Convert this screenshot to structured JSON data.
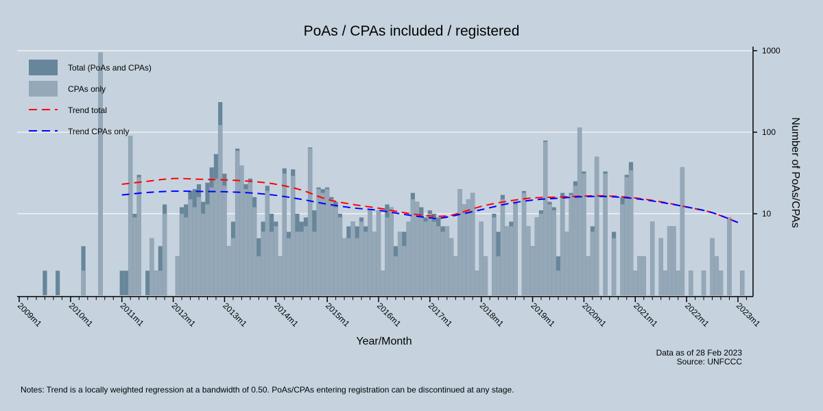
{
  "chart_data": {
    "type": "bar",
    "title": "PoAs / CPAs included / registered",
    "xlabel": "Year/Month",
    "ylabel": "Number of PoAs/CPAs",
    "y_scale": "log",
    "ylim": [
      1,
      1000
    ],
    "y_ticks": [
      10,
      100,
      1000
    ],
    "y_axis_side": "right",
    "x_range": [
      "2009m1",
      "2023m1"
    ],
    "x_ticks": [
      "2009m1",
      "2010m1",
      "2011m1",
      "2012m1",
      "2013m1",
      "2014m1",
      "2015m1",
      "2016m1",
      "2017m1",
      "2018m1",
      "2019m1",
      "2020m1",
      "2021m1",
      "2022m1",
      "2023m1"
    ],
    "grid": true,
    "legend": {
      "placement": "top-left",
      "items": [
        "Total (PoAs and CPAs)",
        "CPAs only",
        "Trend total",
        "Trend CPAs only"
      ]
    },
    "colors": {
      "total": "#67869a",
      "cpas": "#95a8b8",
      "trend_total": "#ff0000",
      "trend_cpas": "#0000ff",
      "background": "#c6d3df"
    },
    "series_names": [
      "Total (PoAs and CPAs)",
      "CPAs only"
    ],
    "bars": [
      [
        "2009m7",
        2,
        0
      ],
      [
        "2009m10",
        2,
        0
      ],
      [
        "2010m4",
        4,
        2
      ],
      [
        "2010m8",
        950,
        950
      ],
      [
        "2011m1",
        2,
        0
      ],
      [
        "2011m2",
        2,
        0
      ],
      [
        "2011m3",
        90,
        90
      ],
      [
        "2011m4",
        10,
        9
      ],
      [
        "2011m5",
        30,
        28
      ],
      [
        "2011m7",
        2,
        0
      ],
      [
        "2011m8",
        5,
        5
      ],
      [
        "2011m9",
        2,
        2
      ],
      [
        "2011m10",
        4,
        2
      ],
      [
        "2011m11",
        13,
        10
      ],
      [
        "2012m2",
        3,
        3
      ],
      [
        "2012m3",
        12,
        10
      ],
      [
        "2012m4",
        13,
        9
      ],
      [
        "2012m5",
        19,
        15
      ],
      [
        "2012m6",
        20,
        12
      ],
      [
        "2012m7",
        23,
        16
      ],
      [
        "2012m8",
        14,
        10
      ],
      [
        "2012m9",
        24,
        13
      ],
      [
        "2012m10",
        37,
        21
      ],
      [
        "2012m11",
        54,
        27
      ],
      [
        "2012m12",
        234,
        122
      ],
      [
        "2013m1",
        31,
        22
      ],
      [
        "2013m2",
        4,
        4
      ],
      [
        "2013m3",
        8,
        5
      ],
      [
        "2013m4",
        63,
        59
      ],
      [
        "2013m5",
        39,
        39
      ],
      [
        "2013m6",
        23,
        20
      ],
      [
        "2013m7",
        27,
        25
      ],
      [
        "2013m8",
        16,
        12
      ],
      [
        "2013m9",
        5,
        3
      ],
      [
        "2013m10",
        8,
        6
      ],
      [
        "2013m11",
        22,
        19
      ],
      [
        "2013m12",
        10,
        6
      ],
      [
        "2014m1",
        8,
        7
      ],
      [
        "2014m2",
        3,
        3
      ],
      [
        "2014m3",
        36,
        31
      ],
      [
        "2014m4",
        6,
        5
      ],
      [
        "2014m5",
        35,
        29
      ],
      [
        "2014m6",
        10,
        6
      ],
      [
        "2014m7",
        8,
        6
      ],
      [
        "2014m8",
        9,
        7
      ],
      [
        "2014m9",
        65,
        63
      ],
      [
        "2014m10",
        11,
        6
      ],
      [
        "2014m11",
        21,
        20
      ],
      [
        "2014m12",
        20,
        18
      ],
      [
        "2015m1",
        21,
        20
      ],
      [
        "2015m2",
        16,
        15
      ],
      [
        "2015m3",
        14,
        12
      ],
      [
        "2015m4",
        10,
        9
      ],
      [
        "2015m5",
        5,
        5
      ],
      [
        "2015m6",
        7,
        5
      ],
      [
        "2015m7",
        8,
        8
      ],
      [
        "2015m8",
        7,
        5
      ],
      [
        "2015m9",
        9,
        8
      ],
      [
        "2015m10",
        7,
        6
      ],
      [
        "2015m11",
        11,
        11
      ],
      [
        "2015m12",
        6,
        6
      ],
      [
        "2016m1",
        11,
        11
      ],
      [
        "2016m2",
        2,
        2
      ],
      [
        "2016m3",
        13,
        9
      ],
      [
        "2016m4",
        12,
        12
      ],
      [
        "2016m5",
        4,
        3
      ],
      [
        "2016m6",
        6,
        6
      ],
      [
        "2016m7",
        6,
        4
      ],
      [
        "2016m8",
        8,
        8
      ],
      [
        "2016m9",
        18,
        15
      ],
      [
        "2016m10",
        14,
        14
      ],
      [
        "2016m11",
        12,
        9
      ],
      [
        "2016m12",
        9,
        8
      ],
      [
        "2017m1",
        11,
        10
      ],
      [
        "2017m2",
        10,
        8
      ],
      [
        "2017m3",
        9,
        7
      ],
      [
        "2017m4",
        7,
        6
      ],
      [
        "2017m5",
        7,
        7
      ],
      [
        "2017m6",
        5,
        5
      ],
      [
        "2017m7",
        3,
        3
      ],
      [
        "2017m8",
        20,
        20
      ],
      [
        "2017m9",
        13,
        13
      ],
      [
        "2017m10",
        15,
        15
      ],
      [
        "2017m11",
        18,
        18
      ],
      [
        "2017m12",
        2,
        2
      ],
      [
        "2018m1",
        8,
        8
      ],
      [
        "2018m2",
        3,
        3
      ],
      [
        "2018m4",
        10,
        9
      ],
      [
        "2018m5",
        6,
        3
      ],
      [
        "2018m6",
        17,
        15
      ],
      [
        "2018m7",
        7,
        7
      ],
      [
        "2018m8",
        8,
        7
      ],
      [
        "2018m9",
        14,
        13
      ],
      [
        "2018m11",
        19,
        18
      ],
      [
        "2018m12",
        7,
        7
      ],
      [
        "2019m1",
        4,
        4
      ],
      [
        "2019m2",
        9,
        9
      ],
      [
        "2019m3",
        11,
        10
      ],
      [
        "2019m4",
        79,
        76
      ],
      [
        "2019m5",
        14,
        13
      ],
      [
        "2019m6",
        12,
        11
      ],
      [
        "2019m7",
        3,
        2
      ],
      [
        "2019m8",
        18,
        16
      ],
      [
        "2019m9",
        6,
        6
      ],
      [
        "2019m10",
        18,
        17
      ],
      [
        "2019m11",
        25,
        22
      ],
      [
        "2019m12",
        114,
        114
      ],
      [
        "2020m1",
        33,
        31
      ],
      [
        "2020m2",
        3,
        3
      ],
      [
        "2020m3",
        7,
        6
      ],
      [
        "2020m4",
        50,
        50
      ],
      [
        "2020m6",
        33,
        31
      ],
      [
        "2020m8",
        6,
        5
      ],
      [
        "2020m10",
        16,
        13
      ],
      [
        "2020m11",
        30,
        28
      ],
      [
        "2020m12",
        43,
        34
      ],
      [
        "2021m1",
        2,
        2
      ],
      [
        "2021m2",
        3,
        3
      ],
      [
        "2021m3",
        3,
        3
      ],
      [
        "2021m5",
        8,
        8
      ],
      [
        "2021m7",
        5,
        5
      ],
      [
        "2021m8",
        2,
        2
      ],
      [
        "2021m9",
        7,
        7
      ],
      [
        "2021m10",
        7,
        7
      ],
      [
        "2021m11",
        2,
        2
      ],
      [
        "2021m12",
        37,
        37
      ],
      [
        "2022m2",
        2,
        2
      ],
      [
        "2022m5",
        2,
        2
      ],
      [
        "2022m7",
        5,
        5
      ],
      [
        "2022m8",
        3,
        3
      ],
      [
        "2022m9",
        2,
        2
      ],
      [
        "2022m11",
        9,
        9
      ],
      [
        "2023m2",
        2,
        2
      ]
    ],
    "trend_total": [
      [
        "2011m1",
        23
      ],
      [
        "2011m7",
        25
      ],
      [
        "2012m1",
        27
      ],
      [
        "2012m7",
        26.5
      ],
      [
        "2013m1",
        26
      ],
      [
        "2013m7",
        25
      ],
      [
        "2014m1",
        23
      ],
      [
        "2014m7",
        19.5
      ],
      [
        "2015m1",
        15
      ],
      [
        "2015m7",
        13
      ],
      [
        "2016m1",
        11.7
      ],
      [
        "2016m7",
        10.3
      ],
      [
        "2017m1",
        9.4
      ],
      [
        "2017m6",
        9.6
      ],
      [
        "2018m1",
        12.3
      ],
      [
        "2018m7",
        14.2
      ],
      [
        "2019m1",
        15.6
      ],
      [
        "2019m7",
        16
      ],
      [
        "2020m1",
        16.5
      ],
      [
        "2020m7",
        16.5
      ],
      [
        "2021m1",
        15.6
      ],
      [
        "2021m7",
        14
      ],
      [
        "2022m1",
        12.1
      ],
      [
        "2022m7",
        10.3
      ],
      [
        "2023m1",
        7.8
      ]
    ],
    "trend_cpas": [
      [
        "2011m1",
        17
      ],
      [
        "2011m7",
        18.2
      ],
      [
        "2012m1",
        18.9
      ],
      [
        "2012m7",
        18.8
      ],
      [
        "2013m1",
        18.6
      ],
      [
        "2013m7",
        18
      ],
      [
        "2014m1",
        16.8
      ],
      [
        "2014m7",
        15
      ],
      [
        "2015m1",
        13.1
      ],
      [
        "2015m7",
        11.8
      ],
      [
        "2016m1",
        11
      ],
      [
        "2016m7",
        9.8
      ],
      [
        "2017m1",
        8.9
      ],
      [
        "2017m4",
        8.9
      ],
      [
        "2018m1",
        11.2
      ],
      [
        "2018m7",
        13.2
      ],
      [
        "2019m1",
        14.7
      ],
      [
        "2019m7",
        15.5
      ],
      [
        "2020m1",
        16.2
      ],
      [
        "2020m7",
        16.2
      ],
      [
        "2021m1",
        15.3
      ],
      [
        "2021m7",
        13.8
      ],
      [
        "2022m1",
        12.1
      ],
      [
        "2022m7",
        10.3
      ],
      [
        "2023m1",
        7.8
      ]
    ]
  },
  "footer": {
    "data_as_of": "Data as of 28 Feb 2023",
    "source": "Source: UNFCCC",
    "notes": "Notes: Trend is a locally weighted regression at a bandwidth of 0.50. PoAs/CPAs entering registration can be discontinued at any stage."
  }
}
